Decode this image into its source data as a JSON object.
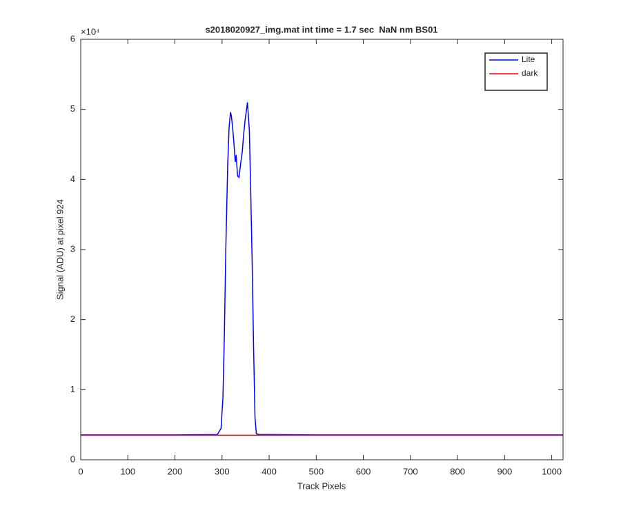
{
  "chart_data": {
    "type": "line",
    "title": "s2018020927_img.mat int time = 1.7 sec  NaN nm BS01",
    "x_label": "Track Pixels",
    "y_label": "Signal (ADU) at pixel 924",
    "y_scale_label": "×10⁴",
    "x": [
      0,
      100,
      200,
      290,
      298,
      302,
      305,
      308,
      312,
      315,
      318,
      320,
      323,
      326,
      328,
      330,
      333,
      336,
      340,
      343,
      346,
      349,
      352,
      354,
      356,
      358,
      361,
      364,
      367,
      370,
      373,
      380,
      400,
      500,
      600,
      700,
      800,
      900,
      1000,
      1024
    ],
    "series": [
      {
        "name": "Lite",
        "color": "#0000ff",
        "values": [
          3550,
          3550,
          3550,
          3600,
          4500,
          9000,
          18000,
          30000,
          42000,
          47500,
          49600,
          49000,
          47000,
          44500,
          42500,
          43500,
          40500,
          40300,
          42500,
          44000,
          46500,
          48500,
          50000,
          51000,
          49000,
          47000,
          38000,
          28000,
          16000,
          6000,
          3700,
          3600,
          3600,
          3550,
          3550,
          3550,
          3550,
          3550,
          3550,
          3550
        ]
      },
      {
        "name": "dark",
        "color": "#ff0000",
        "values": [
          3500,
          3500,
          3500,
          3500,
          3500,
          3500,
          3500,
          3500,
          3500,
          3500,
          3500,
          3500,
          3500,
          3500,
          3500,
          3500,
          3500,
          3500,
          3500,
          3500,
          3500,
          3500,
          3500,
          3500,
          3500,
          3500,
          3500,
          3500,
          3500,
          3500,
          3500,
          3500,
          3500,
          3500,
          3500,
          3500,
          3500,
          3500,
          3500,
          3500
        ]
      }
    ],
    "xlim": [
      0,
      1024
    ],
    "xticks": [
      0,
      100,
      200,
      300,
      400,
      500,
      600,
      700,
      800,
      900,
      1000
    ],
    "ylim": [
      0,
      60000
    ],
    "yticks": [
      {
        "value": 0,
        "label": "0"
      },
      {
        "value": 10000,
        "label": "1"
      },
      {
        "value": 20000,
        "label": "2"
      },
      {
        "value": 30000,
        "label": "3"
      },
      {
        "value": 40000,
        "label": "4"
      },
      {
        "value": 50000,
        "label": "5"
      },
      {
        "value": 60000,
        "label": "6"
      }
    ],
    "legend": "top-right",
    "grid": false
  }
}
